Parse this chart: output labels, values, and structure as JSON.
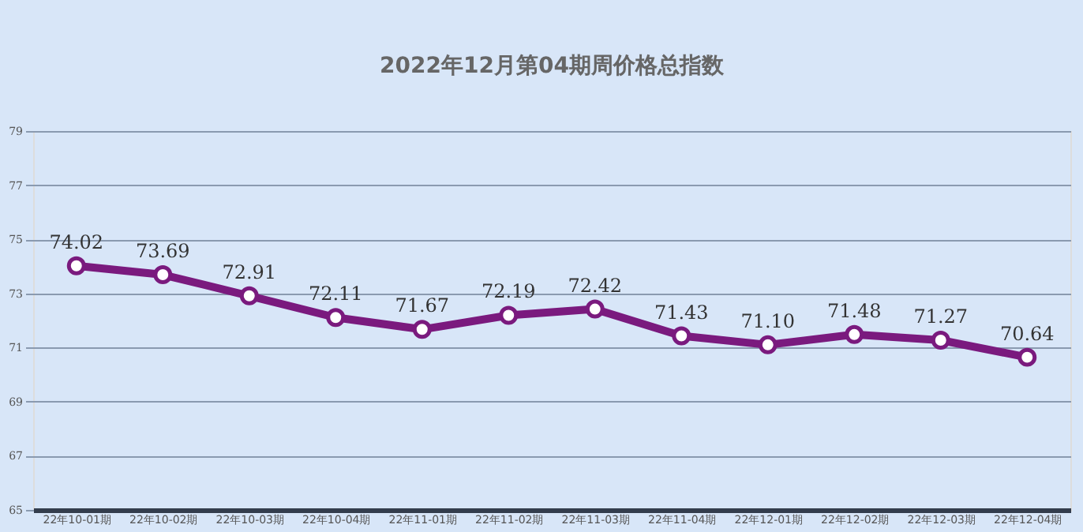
{
  "chart_data": {
    "type": "line",
    "title": "2022年12月第04期周价格总指数",
    "categories": [
      "22年10-01期",
      "22年10-02期",
      "22年10-03期",
      "22年10-04期",
      "22年11-01期",
      "22年11-02期",
      "22年11-03期",
      "22年11-04期",
      "22年12-01期",
      "22年12-02期",
      "22年12-03期",
      "22年12-04期"
    ],
    "series": [
      {
        "color": "#7a1a7e",
        "values": [
          74.02,
          73.69,
          72.91,
          72.11,
          71.67,
          72.19,
          72.42,
          71.43,
          71.1,
          71.48,
          71.27,
          70.64
        ],
        "value_labels": [
          "74.02",
          "73.69",
          "72.91",
          "72.11",
          "71.67",
          "72.19",
          "72.42",
          "71.43",
          "71.10",
          "71.48",
          "71.27",
          "70.64"
        ]
      }
    ],
    "ylim": [
      65,
      79
    ],
    "yticks": [
      65,
      67,
      69,
      71,
      73,
      75,
      77,
      79
    ],
    "grid": "y",
    "marker": "circle",
    "line_style": "solid"
  }
}
